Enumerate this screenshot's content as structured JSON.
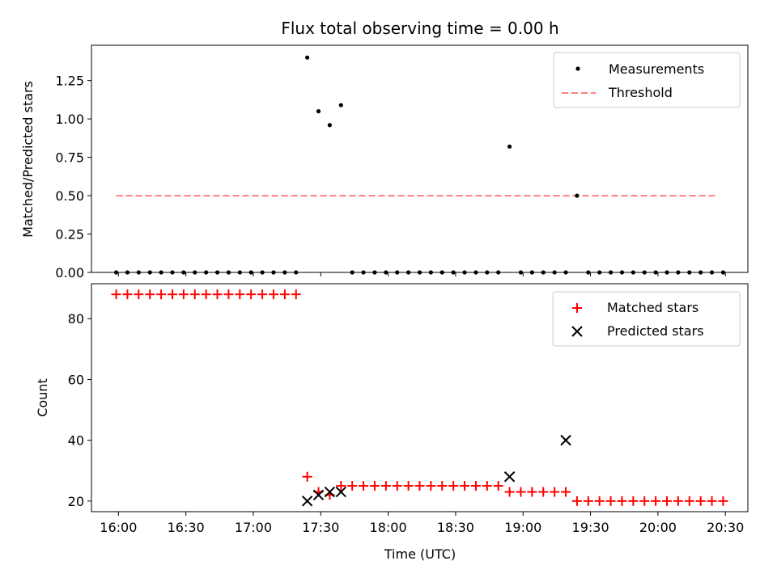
{
  "chart_data": [
    {
      "type": "scatter",
      "title": "Flux total observing time = 0.00 h",
      "xlabel": "",
      "ylabel": "Matched/Predicted stars",
      "xlim_minutes": [
        -12,
        280
      ],
      "ylim": [
        0,
        1.48
      ],
      "y_ticks": [
        0.0,
        0.25,
        0.5,
        0.75,
        1.0,
        1.25
      ],
      "y_tick_labels": [
        "0.00",
        "0.25",
        "0.50",
        "0.75",
        "1.00",
        "1.25"
      ],
      "legend": {
        "placement": "top-right",
        "entries": [
          "Measurements",
          "Threshold"
        ]
      },
      "series": [
        {
          "name": "Measurements",
          "marker": "dot",
          "color": "#000000",
          "x_minutes": [
            -1,
            4,
            9,
            14,
            19,
            24,
            29,
            34,
            39,
            44,
            49,
            54,
            59,
            64,
            69,
            74,
            79,
            84,
            89,
            94,
            99,
            104,
            109,
            114,
            119,
            124,
            129,
            134,
            139,
            144,
            149,
            154,
            159,
            164,
            169,
            174,
            179,
            184,
            189,
            194,
            199,
            204,
            209,
            214,
            219,
            224,
            229,
            234,
            239,
            244,
            249,
            254,
            259,
            264,
            269
          ],
          "y": [
            0,
            0,
            0,
            0,
            0,
            0,
            0,
            0,
            0,
            0,
            0,
            0,
            0,
            0,
            0,
            0,
            0,
            1.4,
            1.05,
            0.96,
            1.09,
            0,
            0,
            0,
            0,
            0,
            0,
            0,
            0,
            0,
            0,
            0,
            0,
            0,
            0,
            0.82,
            0,
            0,
            0,
            0,
            0,
            0.5,
            0,
            0,
            0,
            0,
            0,
            0,
            0,
            0,
            0,
            0,
            0,
            0,
            0
          ]
        },
        {
          "name": "Threshold",
          "style": "dashed",
          "color": "#ff7f7f",
          "x_minutes": [
            -1,
            266
          ],
          "y": [
            0.5,
            0.5
          ]
        }
      ]
    },
    {
      "type": "scatter",
      "title": "",
      "xlabel": "Time (UTC)",
      "ylabel": "Count",
      "xlim_minutes": [
        -12,
        280
      ],
      "ylim": [
        16.5,
        91.5
      ],
      "y_ticks": [
        20,
        40,
        60,
        80
      ],
      "y_tick_labels": [
        "20",
        "40",
        "60",
        "80"
      ],
      "x_ticks_minutes": [
        0,
        30,
        60,
        90,
        120,
        150,
        180,
        210,
        240,
        270
      ],
      "x_tick_labels": [
        "16:00",
        "16:30",
        "17:00",
        "17:30",
        "18:00",
        "18:30",
        "19:00",
        "19:30",
        "20:00",
        "20:30"
      ],
      "legend": {
        "placement": "top-right",
        "entries": [
          "Matched stars",
          "Predicted stars"
        ]
      },
      "series": [
        {
          "name": "Matched stars",
          "marker": "plus",
          "color": "#ff0000",
          "x_minutes": [
            -1,
            4,
            9,
            14,
            19,
            24,
            29,
            34,
            39,
            44,
            49,
            54,
            59,
            64,
            69,
            74,
            79,
            84,
            89,
            94,
            99,
            104,
            109,
            114,
            119,
            124,
            129,
            134,
            139,
            144,
            149,
            154,
            159,
            164,
            169,
            174,
            179,
            184,
            189,
            194,
            199,
            204,
            209,
            214,
            219,
            224,
            229,
            234,
            239,
            244,
            249,
            254,
            259,
            264,
            269
          ],
          "y": [
            88,
            88,
            88,
            88,
            88,
            88,
            88,
            88,
            88,
            88,
            88,
            88,
            88,
            88,
            88,
            88,
            88,
            28,
            23,
            22,
            25,
            25,
            25,
            25,
            25,
            25,
            25,
            25,
            25,
            25,
            25,
            25,
            25,
            25,
            25,
            23,
            23,
            23,
            23,
            23,
            23,
            20,
            20,
            20,
            20,
            20,
            20,
            20,
            20,
            20,
            20,
            20,
            20,
            20,
            20
          ]
        },
        {
          "name": "Predicted stars",
          "marker": "x",
          "color": "#000000",
          "x_minutes": [
            84,
            89,
            94,
            99,
            174,
            199
          ],
          "y": [
            20,
            22,
            23,
            23,
            28,
            40
          ]
        }
      ]
    }
  ]
}
